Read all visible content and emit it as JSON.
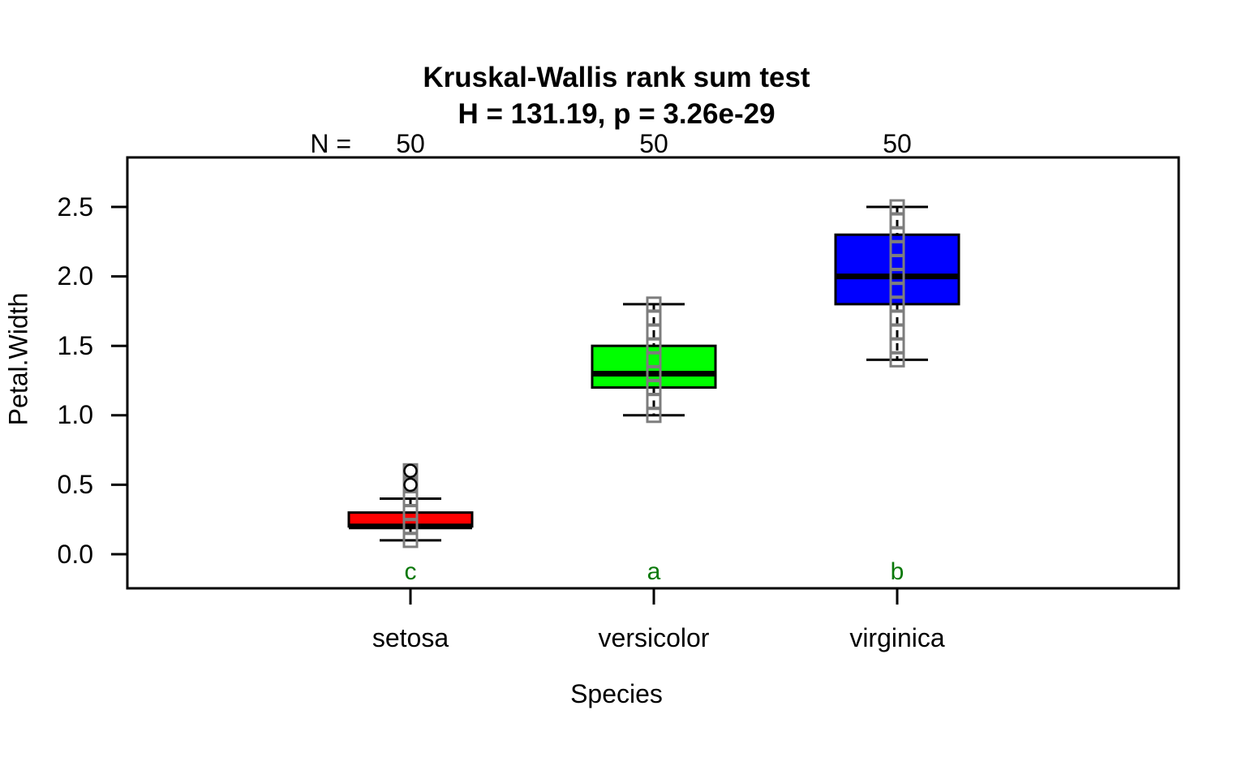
{
  "chart_data": {
    "type": "boxplot",
    "title": "Kruskal-Wallis rank sum test",
    "subtitle": "H = 131.19, p = 3.26e-29",
    "xlabel": "Species",
    "ylabel": "Petal.Width",
    "n_label": "N =",
    "yticks": [
      "0.0",
      "0.5",
      "1.0",
      "1.5",
      "2.0",
      "2.5"
    ],
    "ylim": [
      0.0,
      2.85
    ],
    "grid": false,
    "legend": "none",
    "groups": [
      {
        "label": "setosa",
        "n": 50,
        "sig_letter": "c",
        "box_color": "#FF0000",
        "whisker_low": 0.1,
        "q1": 0.2,
        "median": 0.2,
        "q3": 0.3,
        "whisker_high": 0.4,
        "outliers": [
          0.5,
          0.6
        ],
        "point_values": [
          0.1,
          0.2,
          0.3,
          0.4,
          0.5,
          0.6
        ]
      },
      {
        "label": "versicolor",
        "n": 50,
        "sig_letter": "a",
        "box_color": "#00FF00",
        "whisker_low": 1.0,
        "q1": 1.2,
        "median": 1.3,
        "q3": 1.5,
        "whisker_high": 1.8,
        "outliers": [],
        "point_values": [
          1.0,
          1.1,
          1.2,
          1.3,
          1.4,
          1.5,
          1.6,
          1.7,
          1.8
        ]
      },
      {
        "label": "virginica",
        "n": 50,
        "sig_letter": "b",
        "box_color": "#0000FF",
        "whisker_low": 1.4,
        "q1": 1.8,
        "median": 2.0,
        "q3": 2.3,
        "whisker_high": 2.5,
        "outliers": [],
        "point_values": [
          1.4,
          1.5,
          1.6,
          1.7,
          1.8,
          1.9,
          2.0,
          2.1,
          2.2,
          2.3,
          2.4,
          2.5
        ]
      }
    ],
    "colors": {
      "point_gray": "#7d7d7d",
      "sig_letter_green": "#087808",
      "axis_black": "#000000",
      "background": "#ffffff"
    }
  }
}
